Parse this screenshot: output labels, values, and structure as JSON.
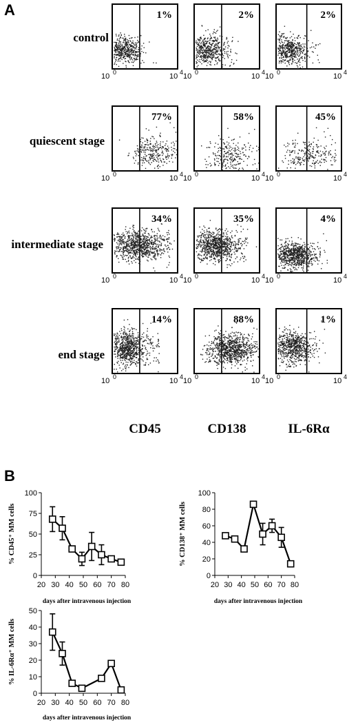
{
  "panel_a_letter": "A",
  "panel_b_letter": "B",
  "flow": {
    "rows": [
      {
        "label": "control",
        "percents": [
          "1%",
          "2%",
          "2%"
        ]
      },
      {
        "label": "quiescent stage",
        "percents": [
          "77%",
          "58%",
          "45%"
        ]
      },
      {
        "label": "intermediate stage",
        "percents": [
          "34%",
          "35%",
          "4%"
        ]
      },
      {
        "label": "end stage",
        "percents": [
          "14%",
          "88%",
          "1%"
        ]
      }
    ],
    "columns": [
      "CD45",
      "CD138",
      "IL-6Rα"
    ],
    "axis_min_label": "10",
    "axis_min_exp": "0",
    "axis_max_label": "10",
    "axis_max_exp": "4"
  },
  "chart_data": [
    {
      "type": "line",
      "ylabel": "% CD45⁺ MM cells",
      "xlabel": "days after intravenous injection",
      "xlim": [
        20,
        80
      ],
      "ylim": [
        0,
        100
      ],
      "xticks": [
        20,
        30,
        40,
        50,
        60,
        70,
        80
      ],
      "yticks": [
        0,
        25,
        50,
        75,
        100
      ],
      "x": [
        28,
        35,
        42,
        49,
        56,
        63,
        70,
        77
      ],
      "y": [
        68,
        57,
        32,
        20,
        35,
        25,
        20,
        16
      ],
      "err": [
        15,
        14,
        0,
        8,
        17,
        12,
        0,
        0
      ],
      "marker": "square"
    },
    {
      "type": "line",
      "ylabel": "% CD138⁺ MM cells",
      "xlabel": "days after intravenous injection",
      "xlim": [
        20,
        80
      ],
      "ylim": [
        0,
        100
      ],
      "xticks": [
        20,
        30,
        40,
        50,
        60,
        70,
        80
      ],
      "yticks": [
        0,
        20,
        40,
        60,
        80,
        100
      ],
      "x": [
        28,
        35,
        42,
        49,
        56,
        63,
        70,
        77
      ],
      "y": [
        48,
        44,
        32,
        86,
        50,
        60,
        46,
        14
      ],
      "err": [
        0,
        0,
        0,
        0,
        13,
        8,
        12,
        0
      ],
      "marker": "square"
    },
    {
      "type": "line",
      "ylabel": "% IL-6Rα⁺ MM cells",
      "xlabel": "days after intravenous injection",
      "xlim": [
        20,
        80
      ],
      "ylim": [
        0,
        50
      ],
      "xticks": [
        20,
        30,
        40,
        50,
        60,
        70,
        80
      ],
      "yticks": [
        0,
        10,
        20,
        30,
        40,
        50
      ],
      "x": [
        28,
        35,
        42,
        49,
        63,
        70,
        77
      ],
      "y": [
        37,
        24,
        6,
        3,
        9,
        18,
        2
      ],
      "err": [
        11,
        7,
        0,
        0,
        0,
        0,
        0
      ],
      "marker": "square"
    }
  ]
}
